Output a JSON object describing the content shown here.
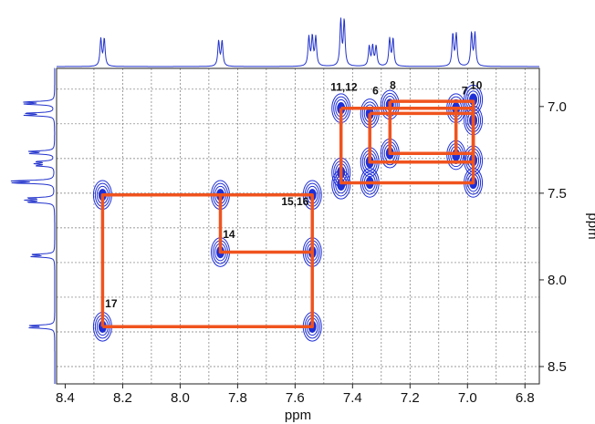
{
  "chart_data": {
    "type": "scatter",
    "title": "",
    "xlabel": "ppm",
    "ylabel": "ppm",
    "x_axis": {
      "min": 6.75,
      "max": 8.43,
      "reversed": true,
      "ticks": [
        8.4,
        8.2,
        8.0,
        7.8,
        7.6,
        7.4,
        7.2,
        7.0,
        6.8
      ],
      "tick_labels": [
        "8.4",
        "8.2",
        "8.0",
        "7.8",
        "7.6",
        "7.4",
        "7.2",
        "7.0",
        "6.8"
      ]
    },
    "y_axis": {
      "min": 6.78,
      "max": 8.6,
      "reversed": true,
      "side": "right",
      "ticks": [
        7.0,
        7.5,
        8.0,
        8.5
      ],
      "tick_labels": [
        "7.0",
        "7.5",
        "8.0",
        "8.5"
      ]
    },
    "grid": true,
    "grid_x": [
      8.3,
      8.2,
      8.1,
      8.0,
      7.9,
      7.8,
      7.7,
      7.6,
      7.5,
      7.4,
      7.3,
      7.2,
      7.1,
      7.0,
      6.9,
      6.8
    ],
    "grid_y": [
      6.9,
      7.1,
      7.3,
      7.5,
      7.7,
      7.9,
      8.1,
      8.3,
      8.5
    ],
    "peak_labels": [
      {
        "text": "11,12",
        "x": 7.43,
        "y": 6.93
      },
      {
        "text": "6",
        "x": 7.32,
        "y": 6.95
      },
      {
        "text": "8",
        "x": 7.26,
        "y": 6.92
      },
      {
        "text": "7",
        "x": 7.01,
        "y": 6.95
      },
      {
        "text": "10",
        "x": 6.97,
        "y": 6.92
      },
      {
        "text": "15,16",
        "x": 7.6,
        "y": 7.59
      },
      {
        "text": "14",
        "x": 7.83,
        "y": 7.78
      },
      {
        "text": "17",
        "x": 8.24,
        "y": 8.18
      }
    ],
    "cross_peaks": [
      {
        "x": 8.27,
        "y": 7.51
      },
      {
        "x": 8.27,
        "y": 8.27
      },
      {
        "x": 7.86,
        "y": 7.51
      },
      {
        "x": 7.86,
        "y": 7.84
      },
      {
        "x": 7.54,
        "y": 7.51
      },
      {
        "x": 7.54,
        "y": 7.84
      },
      {
        "x": 7.54,
        "y": 8.27
      },
      {
        "x": 7.44,
        "y": 7.01
      },
      {
        "x": 7.44,
        "y": 7.38
      },
      {
        "x": 7.44,
        "y": 7.45
      },
      {
        "x": 7.34,
        "y": 7.04
      },
      {
        "x": 7.34,
        "y": 7.32
      },
      {
        "x": 7.34,
        "y": 7.44
      },
      {
        "x": 7.27,
        "y": 6.99
      },
      {
        "x": 7.27,
        "y": 7.27
      },
      {
        "x": 7.04,
        "y": 7.01
      },
      {
        "x": 7.04,
        "y": 7.28
      },
      {
        "x": 6.98,
        "y": 6.96
      },
      {
        "x": 6.98,
        "y": 7.08
      },
      {
        "x": 6.98,
        "y": 7.31
      },
      {
        "x": 6.98,
        "y": 7.44
      }
    ],
    "correlation_paths": [
      [
        [
          8.27,
          8.27
        ],
        [
          8.27,
          7.51
        ],
        [
          7.54,
          7.51
        ],
        [
          7.54,
          8.27
        ],
        [
          8.27,
          8.27
        ]
      ],
      [
        [
          7.86,
          7.51
        ],
        [
          7.86,
          7.84
        ],
        [
          7.54,
          7.84
        ]
      ],
      [
        [
          7.44,
          7.01
        ],
        [
          6.98,
          7.01
        ],
        [
          6.98,
          7.44
        ],
        [
          7.44,
          7.44
        ],
        [
          7.44,
          7.01
        ]
      ],
      [
        [
          7.34,
          7.04
        ],
        [
          7.34,
          7.32
        ],
        [
          6.98,
          7.32
        ],
        [
          6.98,
          7.04
        ],
        [
          7.34,
          7.04
        ]
      ],
      [
        [
          7.27,
          6.97
        ],
        [
          6.98,
          6.97
        ],
        [
          6.98,
          7.27
        ],
        [
          7.27,
          7.27
        ],
        [
          7.27,
          6.97
        ]
      ],
      [
        [
          7.04,
          7.01
        ],
        [
          7.04,
          7.28
        ]
      ]
    ],
    "spectrum_1d": [
      {
        "center": 8.27,
        "height": 0.6,
        "lines": 2
      },
      {
        "center": 7.86,
        "height": 0.55,
        "lines": 2
      },
      {
        "center": 7.54,
        "height": 0.95,
        "lines": 3
      },
      {
        "center": 7.435,
        "height": 1.0,
        "lines": 2
      },
      {
        "center": 7.33,
        "height": 0.65,
        "lines": 3
      },
      {
        "center": 7.265,
        "height": 0.6,
        "lines": 2
      },
      {
        "center": 7.045,
        "height": 0.7,
        "lines": 2
      },
      {
        "center": 6.98,
        "height": 0.72,
        "lines": 2
      }
    ],
    "colors": {
      "contour": "#1f2fd6",
      "path": "#f0531e",
      "spectrum": "#2233cc",
      "grid": "#777777",
      "frame": "#222222"
    }
  }
}
